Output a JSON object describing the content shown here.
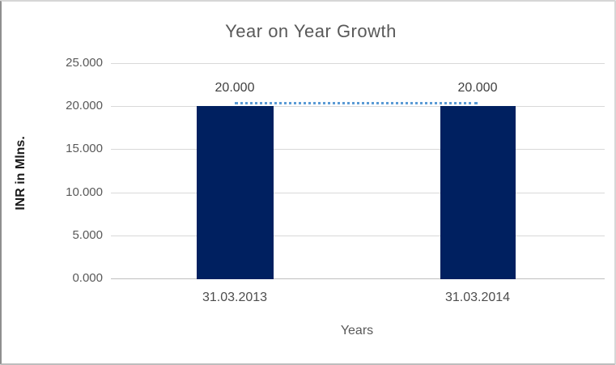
{
  "chart_data": {
    "type": "bar",
    "title": "Year on Year Growth",
    "xlabel": "Years",
    "ylabel": "INR in Mlns.",
    "categories": [
      "31.03.2013",
      "31.03.2014"
    ],
    "series": [
      {
        "name": "bar-series",
        "type": "bar",
        "values": [
          20.0,
          20.0
        ],
        "color": "#002060"
      },
      {
        "name": "trend-line",
        "type": "line",
        "values": [
          20.0,
          20.0
        ],
        "color": "#5b9bd5",
        "line_style": "dotted"
      }
    ],
    "data_labels": [
      "20.000",
      "20.000"
    ],
    "ytick_labels": [
      "25.000",
      "20.000",
      "15.000",
      "10.000",
      "5.000",
      "0.000"
    ],
    "ylim": [
      0,
      25
    ],
    "grid": "horizontal",
    "legend": "none",
    "colors": {
      "bar_fill": "#002060",
      "trend_line": "#5b9bd5",
      "gridline": "#d9d9d9",
      "axis_line": "#bfbfbf",
      "title_text": "#595959",
      "tick_text": "#595959",
      "data_label_text": "#404040",
      "background": "#ffffff"
    }
  }
}
